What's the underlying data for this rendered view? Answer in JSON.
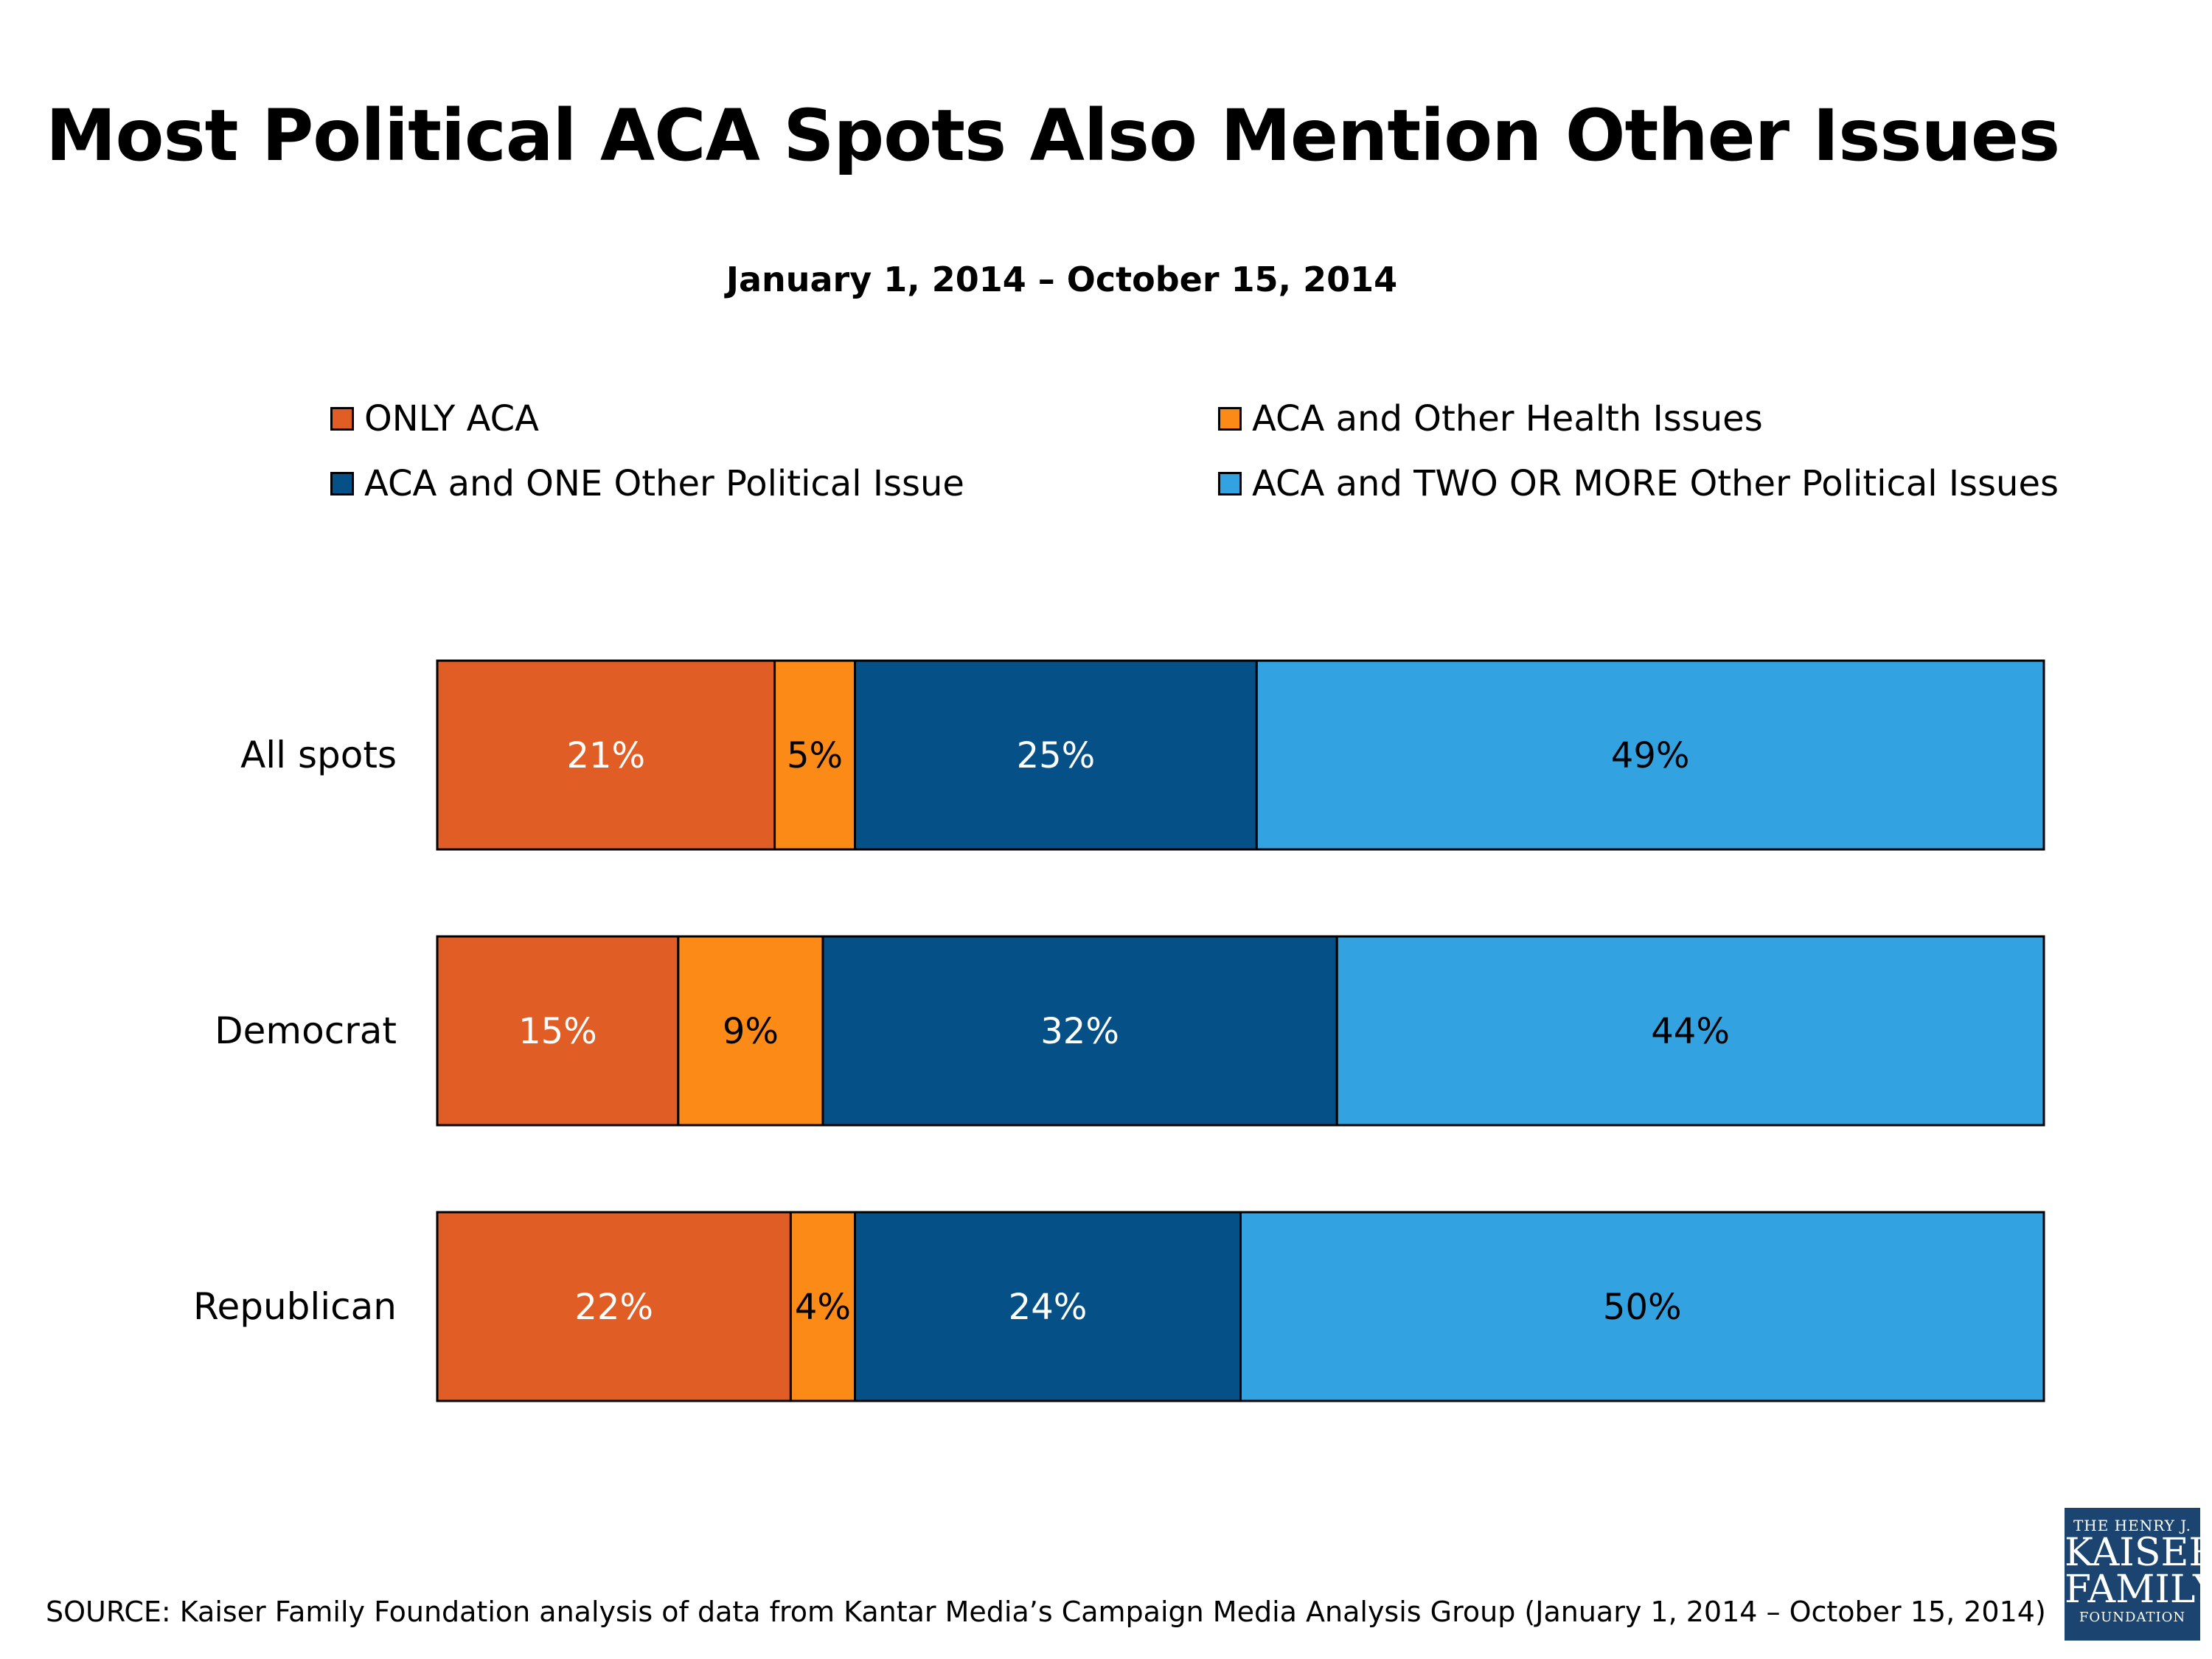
{
  "chart_data": {
    "type": "bar",
    "orientation": "horizontal",
    "stacked": true,
    "title": "Most Political ACA Spots Also Mention Other Issues",
    "subtitle": "January 1, 2014 – October 15, 2014",
    "categories": [
      "All spots",
      "Democrat",
      "Republican"
    ],
    "series": [
      {
        "name": "ONLY ACA",
        "color": "#e05e26",
        "label_color": "#ffffff",
        "values": [
          21,
          15,
          22
        ]
      },
      {
        "name": "ACA and Other Health Issues",
        "color": "#fc8a16",
        "label_color": "#000000",
        "values": [
          5,
          9,
          4
        ]
      },
      {
        "name": "ACA and ONE Other Political Issue",
        "color": "#055187",
        "label_color": "#ffffff",
        "values": [
          25,
          32,
          24
        ]
      },
      {
        "name": "ACA and TWO OR MORE Other Political Issues",
        "color": "#33a2e1",
        "label_color": "#000000",
        "values": [
          49,
          44,
          50
        ]
      }
    ],
    "value_suffix": "%",
    "xlim": [
      0,
      100
    ],
    "grid": false,
    "legend_position": "top"
  },
  "source": "SOURCE: Kaiser Family Foundation analysis of data from Kantar Media’s Campaign Media Analysis Group (January 1, 2014 – October 15, 2014)",
  "logo": {
    "line1": "THE HENRY J.",
    "line2": "KAISER",
    "line3": "FAMILY",
    "line4": "FOUNDATION"
  }
}
